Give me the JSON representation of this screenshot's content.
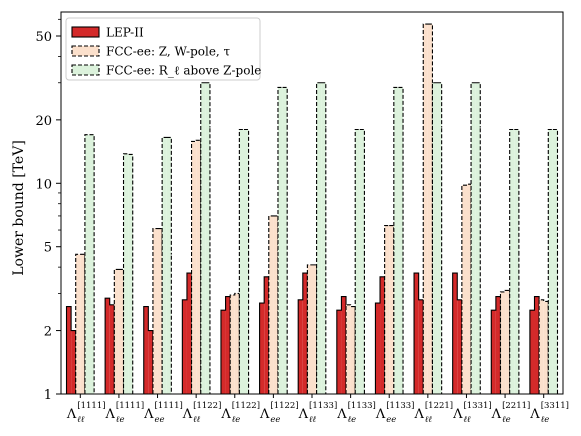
{
  "chart_data": {
    "type": "bar",
    "ylabel": "Lower bound [TeV]",
    "yscale": "log",
    "ylim": [
      1,
      65
    ],
    "yticks": [
      1,
      2,
      5,
      10,
      20,
      50
    ],
    "ytick_labels": [
      "1",
      "2",
      "5",
      "10",
      "20",
      "50"
    ],
    "legend_position": "top-left",
    "categories": [
      {
        "sym": "Λ",
        "sub": "ℓℓ",
        "sup": "[1111]"
      },
      {
        "sym": "Λ",
        "sub": "ℓe",
        "sup": "[1111]"
      },
      {
        "sym": "Λ",
        "sub": "ee",
        "sup": "[1111]"
      },
      {
        "sym": "Λ",
        "sub": "ℓℓ",
        "sup": "[1122]"
      },
      {
        "sym": "Λ",
        "sub": "ℓe",
        "sup": "[1122]"
      },
      {
        "sym": "Λ",
        "sub": "ee",
        "sup": "[1122]"
      },
      {
        "sym": "Λ",
        "sub": "ℓℓ",
        "sup": "[1133]"
      },
      {
        "sym": "Λ",
        "sub": "ℓe",
        "sup": "[1133]"
      },
      {
        "sym": "Λ",
        "sub": "ee",
        "sup": "[1133]"
      },
      {
        "sym": "Λ",
        "sub": "ℓℓ",
        "sup": "[1221]"
      },
      {
        "sym": "Λ",
        "sub": "ℓℓ",
        "sup": "[1331]"
      },
      {
        "sym": "Λ",
        "sub": "ℓe",
        "sup": "[2211]"
      },
      {
        "sym": "Λ",
        "sub": "ℓe",
        "sup": "[3311]"
      }
    ],
    "series": [
      {
        "name": "LEP-II",
        "color": "#d42a2a",
        "linestyle": "solid",
        "values": [
          [
            2.6,
            2.0
          ],
          [
            2.85,
            2.65
          ],
          [
            2.6,
            2.0
          ],
          [
            2.8,
            3.75
          ],
          [
            2.5,
            2.9
          ],
          [
            2.7,
            3.6
          ],
          [
            2.8,
            3.75
          ],
          [
            2.5,
            2.9
          ],
          [
            2.7,
            3.6
          ],
          [
            3.75,
            2.8
          ],
          [
            3.75,
            2.8
          ],
          [
            2.5,
            2.9
          ],
          [
            2.5,
            2.9
          ]
        ]
      },
      {
        "name": "FCC-ee: Z, W-pole, τ",
        "color": "#fbe0cc",
        "linestyle": "dashed",
        "values": [
          [
            4.6,
            4.6
          ],
          [
            3.9,
            3.9
          ],
          [
            6.1,
            6.1
          ],
          [
            15.8,
            16.0
          ],
          [
            2.95,
            3.0
          ],
          [
            7.0,
            7.0
          ],
          [
            4.1,
            4.1
          ],
          [
            2.65,
            2.6
          ],
          [
            6.3,
            6.3
          ],
          [
            57,
            57
          ],
          [
            9.8,
            9.9
          ],
          [
            3.05,
            3.1
          ],
          [
            2.8,
            2.75
          ]
        ]
      },
      {
        "name": "FCC-ee: R_ℓ above Z-pole",
        "color": "#dcf2dc",
        "linestyle": "dashed",
        "values": [
          [
            17.0,
            17.0
          ],
          [
            13.8,
            13.7
          ],
          [
            16.5,
            16.5
          ],
          [
            30.0,
            30.0
          ],
          [
            18.0,
            18.0
          ],
          [
            28.5,
            28.5
          ],
          [
            30.0,
            30.0
          ],
          [
            18.0,
            18.0
          ],
          [
            28.5,
            28.5
          ],
          [
            30.0,
            30.0
          ],
          [
            30.0,
            30.0
          ],
          [
            18.0,
            18.0
          ],
          [
            18.0,
            18.0
          ]
        ]
      }
    ]
  }
}
